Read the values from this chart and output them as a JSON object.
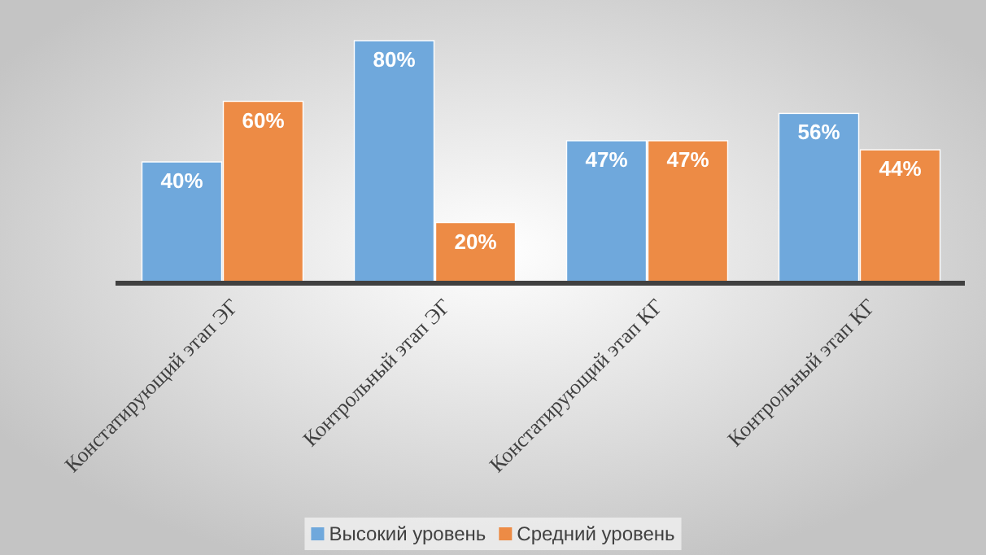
{
  "chart_data": {
    "type": "bar",
    "categories": [
      "Констатирующий этап ЭГ",
      "Контрольный этап ЭГ",
      "Констатирующий этап КГ",
      "Контрольный этап КГ"
    ],
    "series": [
      {
        "name": "Высокий уровень",
        "color": "#6fa8dc",
        "values": [
          40,
          80,
          47,
          56
        ],
        "value_labels": [
          "40%",
          "80%",
          "47%",
          "56%"
        ]
      },
      {
        "name": "Средний уровень",
        "color": "#ed8b45",
        "values": [
          60,
          20,
          47,
          44
        ],
        "value_labels": [
          "60%",
          "20%",
          "47%",
          "44%"
        ]
      }
    ],
    "legend": "bottom"
  }
}
